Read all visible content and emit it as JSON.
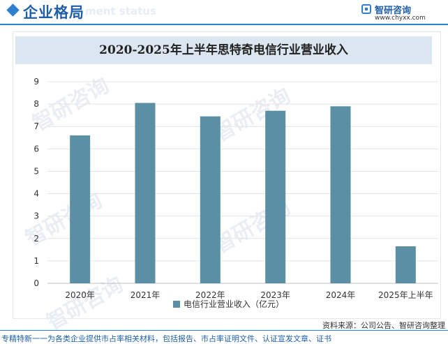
{
  "header": {
    "title": "企业格局",
    "subtitle": "ment status",
    "logo_name": "智研咨询",
    "logo_url": "www.chyxx.com"
  },
  "watermark": "智研咨询",
  "chart_data": {
    "type": "bar",
    "title": "2020-2025年上半年思特奇电信行业营业收入",
    "categories": [
      "2020年",
      "2021年",
      "2022年",
      "2023年",
      "2024年",
      "2025年上半年"
    ],
    "series": [
      {
        "name": "电信行业营业收入（亿元）",
        "values": [
          6.6,
          8.05,
          7.45,
          7.7,
          7.9,
          1.65
        ],
        "color": "#5b8fa3"
      }
    ],
    "yticks": [
      0,
      1,
      2,
      3,
      4,
      5,
      6,
      7,
      8,
      9
    ],
    "ylim": [
      0,
      9
    ],
    "grid": true,
    "legend": "bottom"
  },
  "footer": {
    "source": "资料来源：公司公告、智研咨询整理",
    "text": "专精特新一一为各类企业提供市占率相关材料，包括报告、市占率证明文件、认证宣发文章、证书"
  }
}
